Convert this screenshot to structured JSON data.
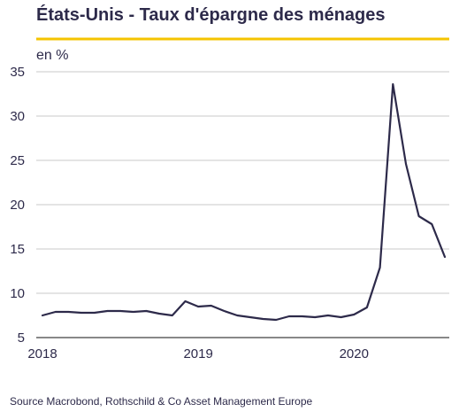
{
  "title": "États-Unis - Taux d'épargne des ménages",
  "unit_label": "en %",
  "source": "Source Macrobond, Rothschild & Co Asset Management Europe",
  "colors": {
    "accent_rule": "#f5c400",
    "series_line": "#2d2a4a",
    "grid": "#c8c8c8",
    "axis": "#888888",
    "text": "#2d2a4a"
  },
  "chart_data": {
    "type": "line",
    "title": "États-Unis - Taux d'épargne des ménages",
    "ylabel": "en %",
    "xlabel": "",
    "ylim": [
      5,
      35
    ],
    "xlim": [
      "2018-01",
      "2020-08"
    ],
    "yticks": [
      5,
      10,
      15,
      20,
      25,
      30,
      35
    ],
    "xticks": [
      "2018",
      "2019",
      "2020"
    ],
    "grid": true,
    "legend": "none",
    "series": [
      {
        "x": [
          "2018-01",
          "2018-02",
          "2018-03",
          "2018-04",
          "2018-05",
          "2018-06",
          "2018-07",
          "2018-08",
          "2018-09",
          "2018-10",
          "2018-11",
          "2018-12",
          "2019-01",
          "2019-02",
          "2019-03",
          "2019-04",
          "2019-05",
          "2019-06",
          "2019-07",
          "2019-08",
          "2019-09",
          "2019-10",
          "2019-11",
          "2019-12",
          "2020-01",
          "2020-02",
          "2020-03",
          "2020-04",
          "2020-05",
          "2020-06",
          "2020-07",
          "2020-08"
        ],
        "values": [
          7.5,
          7.9,
          7.9,
          7.8,
          7.8,
          8.0,
          8.0,
          7.9,
          8.0,
          7.7,
          7.5,
          9.1,
          8.5,
          8.6,
          8.0,
          7.5,
          7.3,
          7.1,
          7.0,
          7.4,
          7.4,
          7.3,
          7.5,
          7.3,
          7.6,
          8.4,
          12.9,
          33.6,
          24.6,
          18.7,
          17.8,
          14.1
        ]
      }
    ]
  }
}
